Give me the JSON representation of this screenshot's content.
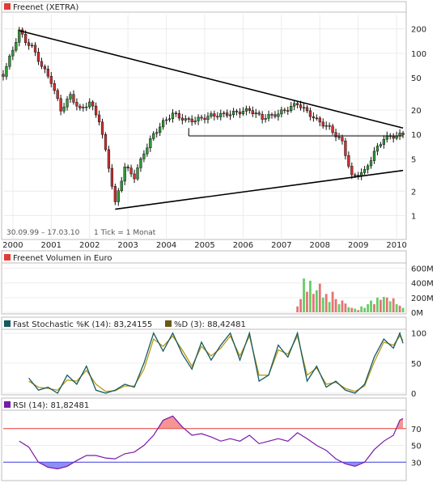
{
  "chart_data": {
    "type": "line",
    "x_ticks": [
      "2000",
      "2001",
      "2002",
      "2003",
      "2004",
      "2005",
      "2006",
      "2007",
      "2008",
      "2009",
      "2010"
    ],
    "price_panel": {
      "title": "Freenet (XETRA)",
      "legend_color": "#e53935",
      "scale": "log",
      "y_ticks": [
        200,
        100,
        50,
        20,
        10,
        5,
        2,
        1
      ],
      "y_range": [
        0.7,
        300
      ],
      "period_label": "30.09.99 – 17.03.10",
      "tick_label": "1 Tick = 1 Monat",
      "monthly_close": [
        {
          "date": "1999-10",
          "value": 55
        },
        {
          "date": "2000-01",
          "value": 110
        },
        {
          "date": "2000-03",
          "value": 190
        },
        {
          "date": "2000-05",
          "value": 140
        },
        {
          "date": "2000-07",
          "value": 120
        },
        {
          "date": "2000-10",
          "value": 70
        },
        {
          "date": "2001-01",
          "value": 45
        },
        {
          "date": "2001-04",
          "value": 20
        },
        {
          "date": "2001-07",
          "value": 30
        },
        {
          "date": "2001-10",
          "value": 20
        },
        {
          "date": "2002-01",
          "value": 25
        },
        {
          "date": "2002-04",
          "value": 15
        },
        {
          "date": "2002-07",
          "value": 4
        },
        {
          "date": "2002-09",
          "value": 1.4
        },
        {
          "date": "2002-12",
          "value": 4
        },
        {
          "date": "2003-03",
          "value": 3
        },
        {
          "date": "2003-06",
          "value": 6
        },
        {
          "date": "2003-09",
          "value": 10
        },
        {
          "date": "2003-12",
          "value": 14
        },
        {
          "date": "2004-03",
          "value": 18
        },
        {
          "date": "2004-07",
          "value": 15
        },
        {
          "date": "2004-10",
          "value": 15
        },
        {
          "date": "2005-03",
          "value": 17
        },
        {
          "date": "2005-09",
          "value": 18
        },
        {
          "date": "2006-03",
          "value": 20
        },
        {
          "date": "2006-07",
          "value": 16
        },
        {
          "date": "2006-12",
          "value": 18
        },
        {
          "date": "2007-06",
          "value": 24
        },
        {
          "date": "2007-12",
          "value": 15
        },
        {
          "date": "2008-04",
          "value": 12
        },
        {
          "date": "2008-08",
          "value": 8
        },
        {
          "date": "2008-11",
          "value": 3
        },
        {
          "date": "2009-03",
          "value": 3.5
        },
        {
          "date": "2009-06",
          "value": 6
        },
        {
          "date": "2009-09",
          "value": 9
        },
        {
          "date": "2010-03",
          "value": 10
        }
      ],
      "trendlines": [
        {
          "from": {
            "date": "2000-03",
            "value": 190
          },
          "to": {
            "date": "2010-03",
            "value": 12
          }
        },
        {
          "from": {
            "date": "2002-09",
            "value": 1.2
          },
          "to": {
            "date": "2010-03",
            "value": 3.6
          }
        },
        {
          "from": {
            "date": "2004-08",
            "value": 9.6
          },
          "to": {
            "date": "2010-03",
            "value": 9.6
          }
        }
      ]
    },
    "volume_panel": {
      "title": "Freenet Volumen in Euro",
      "legend_color": "#e53935",
      "y_ticks": [
        "600M",
        "400M",
        "200M",
        "0M"
      ],
      "y_tick_values": [
        600,
        400,
        200,
        0
      ],
      "y_range": [
        0,
        650
      ],
      "bars": [
        {
          "date": "2007-06",
          "value": 80,
          "up": false
        },
        {
          "date": "2007-07",
          "value": 180,
          "up": false
        },
        {
          "date": "2007-08",
          "value": 460,
          "up": true
        },
        {
          "date": "2007-09",
          "value": 280,
          "up": false
        },
        {
          "date": "2007-10",
          "value": 430,
          "up": true
        },
        {
          "date": "2007-11",
          "value": 250,
          "up": false
        },
        {
          "date": "2007-12",
          "value": 300,
          "up": true
        },
        {
          "date": "2008-01",
          "value": 390,
          "up": false
        },
        {
          "date": "2008-02",
          "value": 200,
          "up": true
        },
        {
          "date": "2008-03",
          "value": 250,
          "up": false
        },
        {
          "date": "2008-04",
          "value": 140,
          "up": true
        },
        {
          "date": "2008-05",
          "value": 280,
          "up": false
        },
        {
          "date": "2008-06",
          "value": 180,
          "up": false
        },
        {
          "date": "2008-07",
          "value": 110,
          "up": true
        },
        {
          "date": "2008-08",
          "value": 160,
          "up": false
        },
        {
          "date": "2008-09",
          "value": 120,
          "up": false
        },
        {
          "date": "2008-10",
          "value": 70,
          "up": true
        },
        {
          "date": "2008-11",
          "value": 60,
          "up": false
        },
        {
          "date": "2008-12",
          "value": 50,
          "up": true
        },
        {
          "date": "2009-01",
          "value": 30,
          "up": false
        },
        {
          "date": "2009-02",
          "value": 80,
          "up": true
        },
        {
          "date": "2009-03",
          "value": 60,
          "up": true
        },
        {
          "date": "2009-04",
          "value": 110,
          "up": true
        },
        {
          "date": "2009-05",
          "value": 160,
          "up": true
        },
        {
          "date": "2009-06",
          "value": 110,
          "up": false
        },
        {
          "date": "2009-07",
          "value": 200,
          "up": true
        },
        {
          "date": "2009-08",
          "value": 170,
          "up": false
        },
        {
          "date": "2009-09",
          "value": 210,
          "up": true
        },
        {
          "date": "2009-10",
          "value": 200,
          "up": false
        },
        {
          "date": "2009-11",
          "value": 150,
          "up": true
        },
        {
          "date": "2009-12",
          "value": 190,
          "up": false
        },
        {
          "date": "2010-01",
          "value": 110,
          "up": true
        },
        {
          "date": "2010-02",
          "value": 90,
          "up": false
        },
        {
          "date": "2010-03",
          "value": 60,
          "up": true
        }
      ]
    },
    "stochastic_panel": {
      "k_label": "Fast Stochastic %K (14): 83,24155",
      "d_label": "%D (3): 88,42481",
      "k_color": "#155a60",
      "d_color": "#b59a1c",
      "y_ticks": [
        100,
        50,
        0
      ],
      "y_range": [
        0,
        105
      ],
      "k_series": [
        {
          "date": "2000-06",
          "value": 25
        },
        {
          "date": "2000-09",
          "value": 5
        },
        {
          "date": "2000-12",
          "value": 10
        },
        {
          "date": "2001-03",
          "value": 0
        },
        {
          "date": "2001-06",
          "value": 30
        },
        {
          "date": "2001-09",
          "value": 15
        },
        {
          "date": "2001-12",
          "value": 45
        },
        {
          "date": "2002-03",
          "value": 5
        },
        {
          "date": "2002-06",
          "value": 0
        },
        {
          "date": "2002-09",
          "value": 5
        },
        {
          "date": "2002-12",
          "value": 15
        },
        {
          "date": "2003-03",
          "value": 10
        },
        {
          "date": "2003-06",
          "value": 50
        },
        {
          "date": "2003-09",
          "value": 100
        },
        {
          "date": "2003-12",
          "value": 70
        },
        {
          "date": "2004-03",
          "value": 100
        },
        {
          "date": "2004-06",
          "value": 65
        },
        {
          "date": "2004-09",
          "value": 40
        },
        {
          "date": "2004-12",
          "value": 85
        },
        {
          "date": "2005-03",
          "value": 55
        },
        {
          "date": "2005-06",
          "value": 80
        },
        {
          "date": "2005-09",
          "value": 100
        },
        {
          "date": "2005-12",
          "value": 55
        },
        {
          "date": "2006-03",
          "value": 100
        },
        {
          "date": "2006-06",
          "value": 20
        },
        {
          "date": "2006-09",
          "value": 30
        },
        {
          "date": "2006-12",
          "value": 80
        },
        {
          "date": "2007-03",
          "value": 60
        },
        {
          "date": "2007-06",
          "value": 100
        },
        {
          "date": "2007-09",
          "value": 20
        },
        {
          "date": "2007-12",
          "value": 45
        },
        {
          "date": "2008-03",
          "value": 10
        },
        {
          "date": "2008-06",
          "value": 20
        },
        {
          "date": "2008-09",
          "value": 5
        },
        {
          "date": "2008-12",
          "value": 0
        },
        {
          "date": "2009-03",
          "value": 15
        },
        {
          "date": "2009-06",
          "value": 60
        },
        {
          "date": "2009-09",
          "value": 90
        },
        {
          "date": "2009-12",
          "value": 75
        },
        {
          "date": "2010-02",
          "value": 100
        },
        {
          "date": "2010-03",
          "value": 83
        }
      ],
      "d_series": [
        {
          "date": "2000-06",
          "value": 20
        },
        {
          "date": "2000-09",
          "value": 10
        },
        {
          "date": "2000-12",
          "value": 8
        },
        {
          "date": "2001-03",
          "value": 5
        },
        {
          "date": "2001-06",
          "value": 22
        },
        {
          "date": "2001-09",
          "value": 20
        },
        {
          "date": "2001-12",
          "value": 38
        },
        {
          "date": "2002-03",
          "value": 15
        },
        {
          "date": "2002-06",
          "value": 3
        },
        {
          "date": "2002-09",
          "value": 4
        },
        {
          "date": "2002-12",
          "value": 12
        },
        {
          "date": "2003-03",
          "value": 12
        },
        {
          "date": "2003-06",
          "value": 40
        },
        {
          "date": "2003-09",
          "value": 90
        },
        {
          "date": "2003-12",
          "value": 78
        },
        {
          "date": "2004-03",
          "value": 95
        },
        {
          "date": "2004-06",
          "value": 72
        },
        {
          "date": "2004-09",
          "value": 45
        },
        {
          "date": "2004-12",
          "value": 78
        },
        {
          "date": "2005-03",
          "value": 62
        },
        {
          "date": "2005-06",
          "value": 75
        },
        {
          "date": "2005-09",
          "value": 95
        },
        {
          "date": "2005-12",
          "value": 62
        },
        {
          "date": "2006-03",
          "value": 95
        },
        {
          "date": "2006-06",
          "value": 30
        },
        {
          "date": "2006-09",
          "value": 30
        },
        {
          "date": "2006-12",
          "value": 72
        },
        {
          "date": "2007-03",
          "value": 65
        },
        {
          "date": "2007-06",
          "value": 95
        },
        {
          "date": "2007-09",
          "value": 30
        },
        {
          "date": "2007-12",
          "value": 42
        },
        {
          "date": "2008-03",
          "value": 15
        },
        {
          "date": "2008-06",
          "value": 18
        },
        {
          "date": "2008-09",
          "value": 8
        },
        {
          "date": "2008-12",
          "value": 3
        },
        {
          "date": "2009-03",
          "value": 12
        },
        {
          "date": "2009-06",
          "value": 52
        },
        {
          "date": "2009-09",
          "value": 85
        },
        {
          "date": "2009-12",
          "value": 80
        },
        {
          "date": "2010-02",
          "value": 95
        },
        {
          "date": "2010-03",
          "value": 88
        }
      ]
    },
    "rsi_panel": {
      "label": "RSI (14): 81,82481",
      "legend_color": "#7a1aa8",
      "line_color": "#7a1aa8",
      "y_ticks": [
        70,
        50,
        30
      ],
      "y_range": [
        10,
        90
      ],
      "upper_band": 70,
      "lower_band": 30,
      "upper_color": "#e53935",
      "lower_color": "#3a3ae0",
      "series": [
        {
          "date": "2000-03",
          "value": 55
        },
        {
          "date": "2000-06",
          "value": 48
        },
        {
          "date": "2000-09",
          "value": 30
        },
        {
          "date": "2000-12",
          "value": 24
        },
        {
          "date": "2001-03",
          "value": 22
        },
        {
          "date": "2001-06",
          "value": 25
        },
        {
          "date": "2001-09",
          "value": 32
        },
        {
          "date": "2001-12",
          "value": 38
        },
        {
          "date": "2002-03",
          "value": 38
        },
        {
          "date": "2002-06",
          "value": 35
        },
        {
          "date": "2002-09",
          "value": 34
        },
        {
          "date": "2002-12",
          "value": 40
        },
        {
          "date": "2003-03",
          "value": 42
        },
        {
          "date": "2003-06",
          "value": 50
        },
        {
          "date": "2003-09",
          "value": 62
        },
        {
          "date": "2003-12",
          "value": 80
        },
        {
          "date": "2004-03",
          "value": 85
        },
        {
          "date": "2004-06",
          "value": 72
        },
        {
          "date": "2004-09",
          "value": 62
        },
        {
          "date": "2004-12",
          "value": 64
        },
        {
          "date": "2005-03",
          "value": 60
        },
        {
          "date": "2005-06",
          "value": 55
        },
        {
          "date": "2005-09",
          "value": 58
        },
        {
          "date": "2005-12",
          "value": 55
        },
        {
          "date": "2006-03",
          "value": 62
        },
        {
          "date": "2006-06",
          "value": 52
        },
        {
          "date": "2006-09",
          "value": 55
        },
        {
          "date": "2006-12",
          "value": 58
        },
        {
          "date": "2007-03",
          "value": 55
        },
        {
          "date": "2007-06",
          "value": 65
        },
        {
          "date": "2007-09",
          "value": 58
        },
        {
          "date": "2007-12",
          "value": 50
        },
        {
          "date": "2008-03",
          "value": 44
        },
        {
          "date": "2008-06",
          "value": 34
        },
        {
          "date": "2008-09",
          "value": 28
        },
        {
          "date": "2008-12",
          "value": 25
        },
        {
          "date": "2009-03",
          "value": 30
        },
        {
          "date": "2009-06",
          "value": 45
        },
        {
          "date": "2009-09",
          "value": 55
        },
        {
          "date": "2009-12",
          "value": 62
        },
        {
          "date": "2010-02",
          "value": 80
        },
        {
          "date": "2010-03",
          "value": 82
        }
      ]
    }
  }
}
